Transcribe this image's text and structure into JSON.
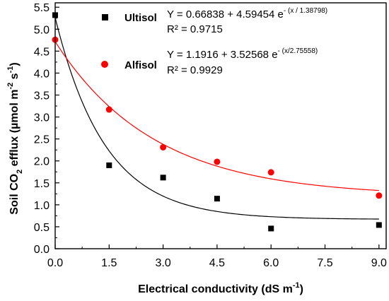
{
  "chart_data": {
    "type": "scatter",
    "xlabel": {
      "main": "Electrical conductivity (dS m",
      "sup": "-1",
      "end": ")"
    },
    "ylabel": {
      "part1": "Soil CO",
      "sub": "2",
      "part2": " efflux (µmol m",
      "sup1": "-2",
      "part3": " s",
      "sup2": "-1",
      "part4": ")"
    },
    "xlim": [
      0,
      9.2
    ],
    "ylim": [
      0,
      5.6
    ],
    "xticks": [
      "0.0",
      "1.5",
      "3.0",
      "4.5",
      "6.0",
      "7.5",
      "9.0"
    ],
    "xtick_values": [
      0,
      1.5,
      3.0,
      4.5,
      6.0,
      7.5,
      9.0
    ],
    "yticks": [
      "0.0",
      "0.5",
      "1.0",
      "1.5",
      "2.0",
      "2.5",
      "3.0",
      "3.5",
      "4.0",
      "4.5",
      "5.0",
      "5.5"
    ],
    "ytick_values": [
      0,
      0.5,
      1.0,
      1.5,
      2.0,
      2.5,
      3.0,
      3.5,
      4.0,
      4.5,
      5.0,
      5.5
    ],
    "grid": false,
    "legend_position": "top-center",
    "series": [
      {
        "name": "Ultisol",
        "marker": "square",
        "color": "#000000",
        "x": [
          0,
          1.5,
          3.0,
          4.5,
          6.0,
          9.0
        ],
        "y": [
          5.32,
          1.9,
          1.62,
          1.14,
          0.46,
          0.54
        ],
        "fit": {
          "a": 0.66838,
          "b": 4.59454,
          "t": 1.38798
        },
        "equation": {
          "main": "Y = 0.66838 + 4.59454 e",
          "sup": "- (x / 1.38798)"
        },
        "r2": "R² = 0.9715"
      },
      {
        "name": "Alfisol",
        "marker": "circle",
        "color": "#ff0000",
        "x": [
          0,
          1.5,
          3.0,
          4.5,
          6.0,
          9.0
        ],
        "y": [
          4.76,
          3.17,
          2.31,
          1.98,
          1.74,
          1.21
        ],
        "fit": {
          "a": 1.1916,
          "b": 3.52568,
          "t": 2.75558
        },
        "equation": {
          "main": "Y = 1.1916 + 3.52568 e",
          "sup": "- (x/2.75558)"
        },
        "r2": "R² = 0.9929"
      }
    ]
  }
}
